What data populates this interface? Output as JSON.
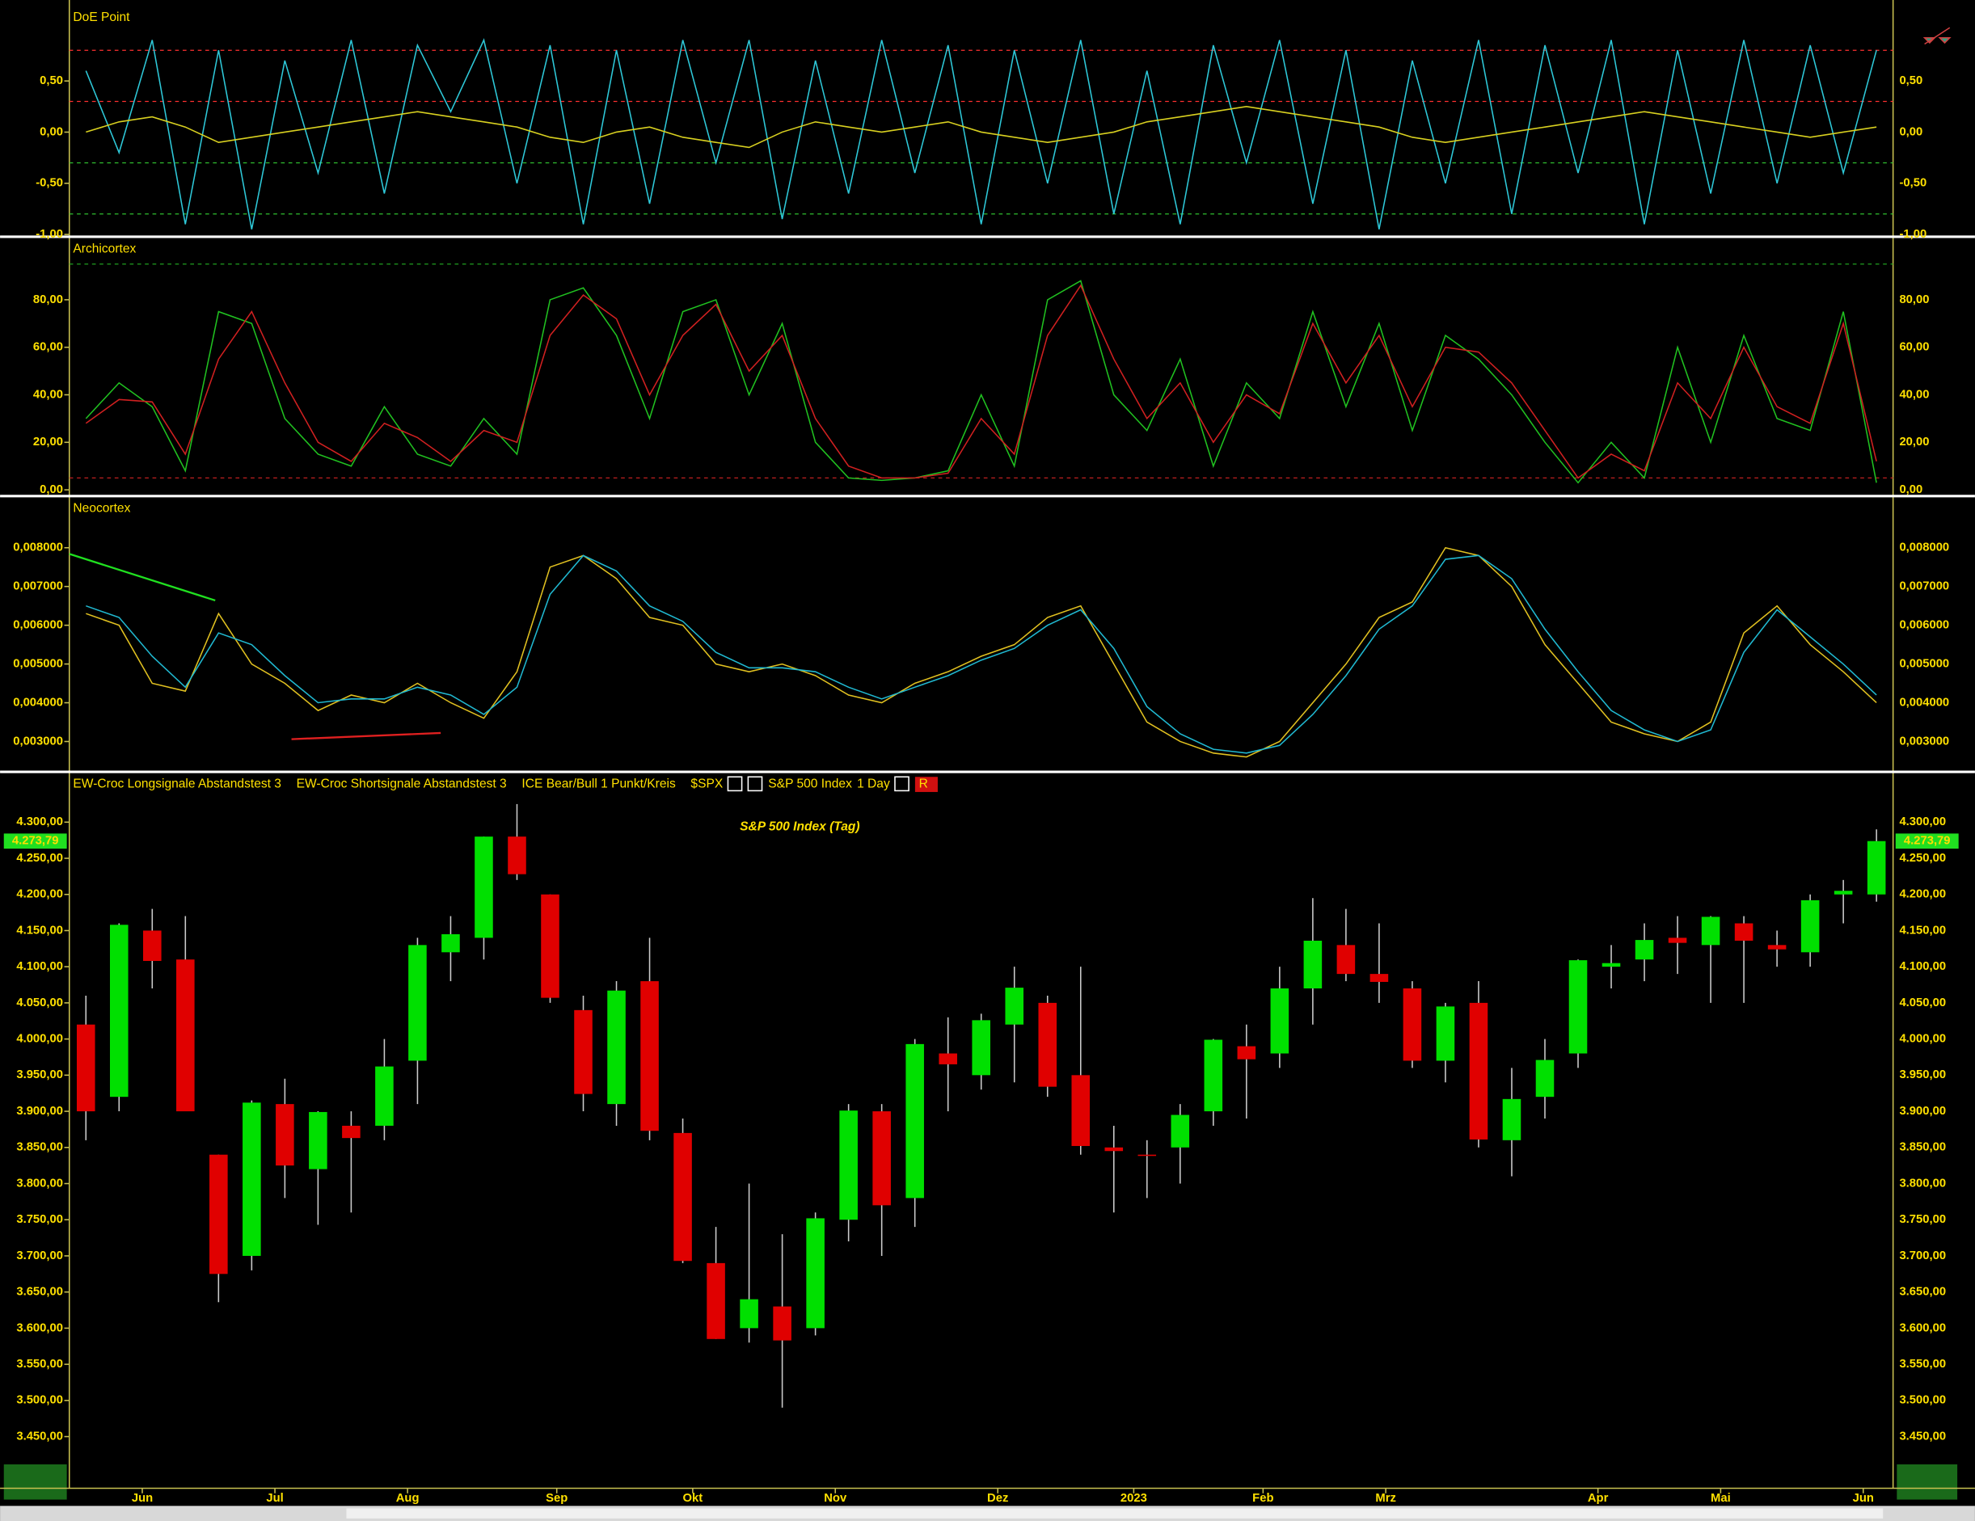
{
  "chart_data": [
    {
      "type": "line",
      "title": "DoE Point",
      "ylim": [
        -1.01,
        1.23
      ],
      "yticks": [
        {
          "value": 0.5,
          "label": "0,50"
        },
        {
          "value": 0,
          "label": "0,00"
        },
        {
          "value": -0.5,
          "label": "-0,50"
        },
        {
          "value": -1,
          "label": "-1,00"
        }
      ],
      "levels": [
        {
          "value": 0.8,
          "color": "#ff3030"
        },
        {
          "value": 0.3,
          "color": "#ff3030"
        },
        {
          "value": -0.3,
          "color": "#30c030"
        },
        {
          "value": -0.8,
          "color": "#30c030"
        }
      ],
      "series": [
        {
          "color": "#2ec8d8",
          "values": [
            0.6,
            -0.2,
            0.9,
            -0.9,
            0.8,
            -0.95,
            0.7,
            -0.4,
            0.9,
            -0.6,
            0.85,
            0.2,
            0.9,
            -0.5,
            0.85,
            -0.9,
            0.8,
            -0.7,
            0.9,
            -0.3,
            0.9,
            -0.85,
            0.7,
            -0.6,
            0.9,
            -0.4,
            0.85,
            -0.9,
            0.8,
            -0.5,
            0.9,
            -0.8,
            0.6,
            -0.9,
            0.85,
            -0.3,
            0.9,
            -0.7,
            0.8,
            -0.95,
            0.7,
            -0.5,
            0.9,
            -0.8,
            0.85,
            -0.4,
            0.9,
            -0.9,
            0.8,
            -0.6,
            0.9,
            -0.5,
            0.85,
            -0.4,
            0.8
          ]
        },
        {
          "color": "#d8d020",
          "values": [
            0.0,
            0.1,
            0.15,
            0.05,
            -0.1,
            -0.05,
            0.0,
            0.05,
            0.1,
            0.15,
            0.2,
            0.15,
            0.1,
            0.05,
            -0.05,
            -0.1,
            0.0,
            0.05,
            -0.05,
            -0.1,
            -0.15,
            0.0,
            0.1,
            0.05,
            0.0,
            0.05,
            0.1,
            0.0,
            -0.05,
            -0.1,
            -0.05,
            0.0,
            0.1,
            0.15,
            0.2,
            0.25,
            0.2,
            0.15,
            0.1,
            0.05,
            -0.05,
            -0.1,
            -0.05,
            0.0,
            0.05,
            0.1,
            0.15,
            0.2,
            0.15,
            0.1,
            0.05,
            0.0,
            -0.05,
            0.0,
            0.05
          ]
        }
      ]
    },
    {
      "type": "line",
      "title": "Archicortex",
      "ylim": [
        -2.1,
        106
      ],
      "yticks": [
        {
          "value": 0,
          "label": "0,00"
        },
        {
          "value": 20,
          "label": "20,00"
        },
        {
          "value": 40,
          "label": "40,00"
        },
        {
          "value": 60,
          "label": "60,00"
        },
        {
          "value": 80,
          "label": "80,00"
        }
      ],
      "levels": [
        {
          "value": 95,
          "color": "#20a020"
        },
        {
          "value": 5,
          "color": "#c02020"
        }
      ],
      "series": [
        {
          "color": "#20c020",
          "values": [
            30,
            45,
            35,
            8,
            75,
            70,
            30,
            15,
            10,
            35,
            15,
            10,
            30,
            15,
            80,
            85,
            65,
            30,
            75,
            80,
            40,
            70,
            20,
            5,
            4,
            5,
            8,
            40,
            10,
            80,
            88,
            40,
            25,
            55,
            10,
            45,
            30,
            75,
            35,
            70,
            25,
            65,
            55,
            40,
            20,
            3,
            20,
            5,
            60,
            20,
            65,
            30,
            25,
            75,
            3
          ]
        },
        {
          "color": "#d02020",
          "values": [
            28,
            38,
            37,
            15,
            55,
            75,
            45,
            20,
            12,
            28,
            22,
            12,
            25,
            20,
            65,
            82,
            72,
            40,
            65,
            78,
            50,
            65,
            30,
            10,
            5,
            5,
            7,
            30,
            15,
            65,
            86,
            55,
            30,
            45,
            20,
            40,
            32,
            70,
            45,
            65,
            35,
            60,
            58,
            45,
            25,
            5,
            15,
            8,
            45,
            30,
            60,
            35,
            28,
            70,
            12
          ]
        }
      ]
    },
    {
      "type": "line",
      "title": "Neocortex",
      "ylim": [
        0.00225,
        0.0093
      ],
      "yticks": [
        {
          "value": 0.003,
          "label": "0,003000"
        },
        {
          "value": 0.004,
          "label": "0,004000"
        },
        {
          "value": 0.005,
          "label": "0,005000"
        },
        {
          "value": 0.006,
          "label": "0,006000"
        },
        {
          "value": 0.007,
          "label": "0,007000"
        },
        {
          "value": 0.008,
          "label": "0,008000"
        }
      ],
      "trendlines": [
        {
          "color": "#20e020",
          "x": [
            -0.5,
            3.9
          ],
          "y": [
            0.00784,
            0.00664
          ]
        },
        {
          "color": "#e02020",
          "x": [
            6.2,
            10.7
          ],
          "y": [
            0.00306,
            0.00322
          ]
        }
      ],
      "series": [
        {
          "color": "#e0c020",
          "values": [
            0.0063,
            0.006,
            0.0045,
            0.0043,
            0.0063,
            0.005,
            0.0045,
            0.0038,
            0.0042,
            0.004,
            0.0045,
            0.004,
            0.0036,
            0.0048,
            0.0075,
            0.0078,
            0.0072,
            0.0062,
            0.006,
            0.005,
            0.0048,
            0.005,
            0.0047,
            0.0042,
            0.004,
            0.0045,
            0.0048,
            0.0052,
            0.0055,
            0.0062,
            0.0065,
            0.005,
            0.0035,
            0.003,
            0.0027,
            0.0026,
            0.003,
            0.004,
            0.005,
            0.0062,
            0.0066,
            0.008,
            0.0078,
            0.007,
            0.0055,
            0.0045,
            0.0035,
            0.0032,
            0.003,
            0.0035,
            0.0058,
            0.0065,
            0.0055,
            0.0048,
            0.004
          ]
        },
        {
          "color": "#20b8d0",
          "values": [
            0.0065,
            0.0062,
            0.0052,
            0.0044,
            0.0058,
            0.0055,
            0.0047,
            0.004,
            0.0041,
            0.0041,
            0.0044,
            0.0042,
            0.0037,
            0.0044,
            0.0068,
            0.0078,
            0.0074,
            0.0065,
            0.0061,
            0.0053,
            0.0049,
            0.0049,
            0.0048,
            0.0044,
            0.0041,
            0.0044,
            0.0047,
            0.0051,
            0.0054,
            0.006,
            0.0064,
            0.0054,
            0.0039,
            0.0032,
            0.0028,
            0.0027,
            0.0029,
            0.0037,
            0.0047,
            0.0059,
            0.0065,
            0.0077,
            0.0078,
            0.0072,
            0.0059,
            0.0048,
            0.0038,
            0.0033,
            0.003,
            0.0033,
            0.0053,
            0.0064,
            0.0057,
            0.005,
            0.0042
          ]
        }
      ]
    },
    {
      "type": "candlestick",
      "title": "S&P 500 Index (Tag)",
      "indicators": [
        "EW-Croc Longsignale Abstandstest 3",
        "EW-Croc Shortsignale Abstandstest 3",
        "ICE Bear/Bull 1 Punkt/Kreis"
      ],
      "symbol": "$SPX",
      "name": "S&P 500 Index",
      "interval": "1 Day",
      "badge": "R",
      "last_price": {
        "value": 4273.79,
        "label": "4.273,79"
      },
      "up_color": "#00e000",
      "down_color": "#e00000",
      "ylim": [
        3382,
        4340
      ],
      "yticks": [
        {
          "value": 3450,
          "label": "3.450,00"
        },
        {
          "value": 3500,
          "label": "3.500,00"
        },
        {
          "value": 3550,
          "label": "3.550,00"
        },
        {
          "value": 3600,
          "label": "3.600,00"
        },
        {
          "value": 3650,
          "label": "3.650,00"
        },
        {
          "value": 3700,
          "label": "3.700,00"
        },
        {
          "value": 3750,
          "label": "3.750,00"
        },
        {
          "value": 3800,
          "label": "3.800,00"
        },
        {
          "value": 3850,
          "label": "3.850,00"
        },
        {
          "value": 3900,
          "label": "3.900,00"
        },
        {
          "value": 3950,
          "label": "3.950,00"
        },
        {
          "value": 4000,
          "label": "4.000,00"
        },
        {
          "value": 4050,
          "label": "4.050,00"
        },
        {
          "value": 4100,
          "label": "4.100,00"
        },
        {
          "value": 4150,
          "label": "4.150,00"
        },
        {
          "value": 4200,
          "label": "4.200,00"
        },
        {
          "value": 4250,
          "label": "4.250,00"
        },
        {
          "value": 4300,
          "label": "4.300,00"
        }
      ],
      "xlim": [
        -0.5,
        54.5
      ],
      "xticks": [
        {
          "value": 1.7,
          "label": "Jun"
        },
        {
          "value": 5.7,
          "label": "Jul"
        },
        {
          "value": 9.7,
          "label": "Aug"
        },
        {
          "value": 14.2,
          "label": "Sep"
        },
        {
          "value": 18.3,
          "label": "Okt"
        },
        {
          "value": 22.6,
          "label": "Nov"
        },
        {
          "value": 27.5,
          "label": "Dez"
        },
        {
          "value": 31.6,
          "label": "2023"
        },
        {
          "value": 35.5,
          "label": "Feb"
        },
        {
          "value": 39.2,
          "label": "Mrz"
        },
        {
          "value": 45.6,
          "label": "Apr"
        },
        {
          "value": 49.3,
          "label": "Mai"
        },
        {
          "value": 53.6,
          "label": "Jun"
        }
      ],
      "open": [
        4020,
        3920,
        4150,
        4110,
        3840,
        3700,
        3910,
        3820,
        3880,
        3880,
        3970,
        4120,
        4140,
        4280,
        4200,
        4040,
        3910,
        4080,
        3870,
        3690,
        3600,
        3630,
        3600,
        3750,
        3900,
        3780,
        3980,
        3950,
        4020,
        4050,
        3950,
        3850,
        3840,
        3850,
        3900,
        3990,
        3980,
        4070,
        4130,
        4090,
        4070,
        3970,
        4050,
        3860,
        3920,
        3980,
        4100,
        4110,
        4140,
        4130,
        4160,
        4130,
        4120,
        4200,
        4200
      ],
      "high": [
        4060,
        4160,
        4180,
        4170,
        3840,
        3915,
        3945,
        3900,
        3900,
        4000,
        4140,
        4170,
        4280,
        4325,
        4200,
        4060,
        4080,
        4140,
        3890,
        3740,
        3800,
        3730,
        3760,
        3910,
        3910,
        4000,
        4030,
        4035,
        4100,
        4060,
        4100,
        3880,
        3860,
        3910,
        4000,
        4020,
        4100,
        4195,
        4180,
        4160,
        4080,
        4050,
        4080,
        3960,
        4000,
        4110,
        4130,
        4160,
        4170,
        4170,
        4170,
        4150,
        4200,
        4220,
        4290
      ],
      "low": [
        3860,
        3900,
        4070,
        3900,
        3636,
        3680,
        3780,
        3743,
        3760,
        3860,
        3910,
        4080,
        4110,
        4220,
        4050,
        3900,
        3880,
        3860,
        3690,
        3585,
        3580,
        3490,
        3590,
        3720,
        3700,
        3740,
        3900,
        3930,
        3940,
        3920,
        3840,
        3760,
        3780,
        3800,
        3880,
        3890,
        3960,
        4020,
        4080,
        4050,
        3960,
        3940,
        3850,
        3810,
        3890,
        3960,
        4070,
        4080,
        4090,
        4050,
        4050,
        4100,
        4100,
        4160,
        4190
      ],
      "close": [
        3900,
        4158,
        4108,
        3900,
        3675,
        3912,
        3825,
        3899,
        3863,
        3962,
        4130,
        4145,
        4280,
        4228,
        4057,
        3924,
        4067,
        3873,
        3693,
        3585,
        3640,
        3583,
        3752,
        3901,
        3770,
        3993,
        3965,
        4026,
        4071,
        3934,
        3852,
        3845,
        3839,
        3895,
        3999,
        3972,
        4070,
        4136,
        4090,
        4079,
        3970,
        4045,
        3861,
        3917,
        3971,
        4109,
        4105,
        4137,
        4133,
        4169,
        4136,
        4124,
        4192,
        4205,
        4273.79
      ]
    }
  ]
}
